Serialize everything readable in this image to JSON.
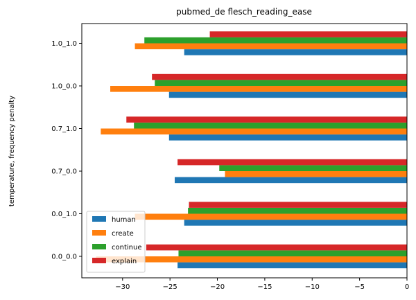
{
  "chart_data": {
    "type": "bar",
    "orientation": "horizontal",
    "title": "pubmed_de flesch_reading_ease",
    "xlabel": "",
    "ylabel": "temperature, frequency penalty",
    "categories": [
      "0.0_0.0",
      "0.0_1.0",
      "0.7_0.0",
      "0.7_1.0",
      "1.0_0.0",
      "1.0_1.0"
    ],
    "xlim": [
      -34.3,
      0
    ],
    "xticks": [
      -30,
      -25,
      -20,
      -15,
      -10,
      -5,
      0
    ],
    "xtick_labels": [
      "−30",
      "−25",
      "−20",
      "−15",
      "−10",
      "−5",
      "0"
    ],
    "legend_position": "lower-left",
    "grid": false,
    "series": [
      {
        "name": "human",
        "color": "#1f77b4",
        "values": [
          -24.2,
          -23.5,
          -24.5,
          -25.1,
          -25.1,
          -23.5
        ]
      },
      {
        "name": "create",
        "color": "#ff7f0e",
        "values": [
          -32.8,
          -28.7,
          -19.2,
          -32.3,
          -31.3,
          -28.7
        ]
      },
      {
        "name": "continue",
        "color": "#2ca02c",
        "values": [
          -24.1,
          -23.1,
          -19.8,
          -28.8,
          -26.6,
          -27.7
        ]
      },
      {
        "name": "explain",
        "color": "#d62728",
        "values": [
          -27.5,
          -23.0,
          -24.2,
          -29.6,
          -26.9,
          -20.8
        ]
      }
    ]
  }
}
